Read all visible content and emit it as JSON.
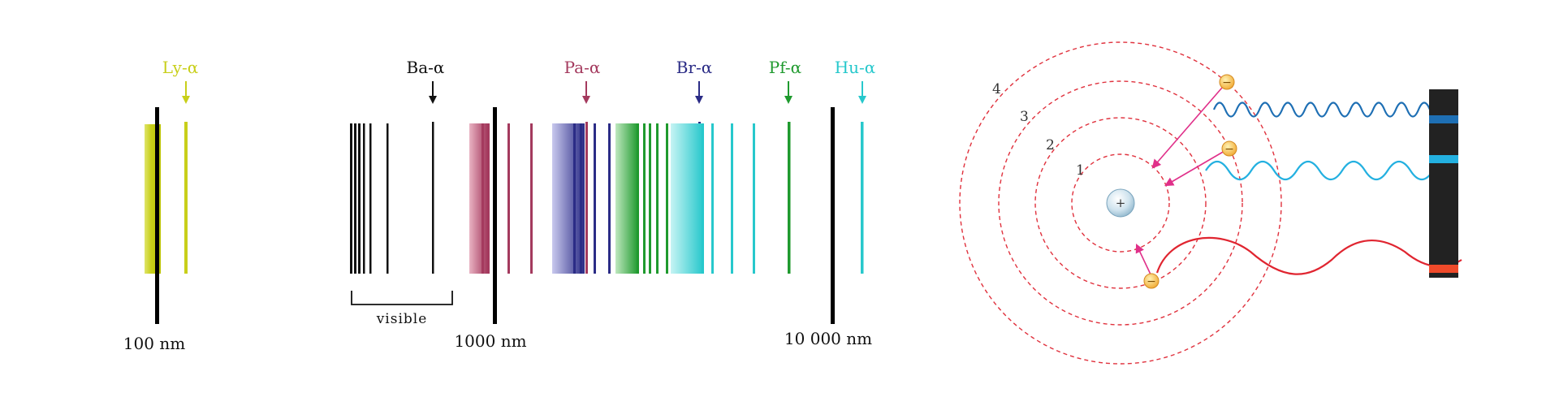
{
  "spectrum": {
    "series": [
      {
        "key": "ly",
        "label": "Ly-α",
        "color": "#c8cf1a"
      },
      {
        "key": "ba",
        "label": "Ba-α",
        "color": "#111111"
      },
      {
        "key": "pa",
        "label": "Pa-α",
        "color": "#a43a5e"
      },
      {
        "key": "br",
        "label": "Br-α",
        "color": "#2b2c86"
      },
      {
        "key": "pf",
        "label": "Pf-α",
        "color": "#1f9a2e"
      },
      {
        "key": "hu",
        "label": "Hu-α",
        "color": "#27c8cc"
      }
    ],
    "scale_labels": [
      "100 nm",
      "1000 nm",
      "10 000 nm"
    ],
    "visible_label": "visible"
  },
  "atom": {
    "orbit_labels": [
      "1",
      "2",
      "3",
      "4"
    ],
    "nucleus_symbol": "+",
    "electron_symbol": "−",
    "colors": {
      "orbit": "#e0313d",
      "arrow": "#e0308a",
      "wave_blue": "#1e6fb4",
      "wave_cyan": "#23b0e0",
      "wave_red": "#e02530",
      "screen": "#222222"
    }
  }
}
